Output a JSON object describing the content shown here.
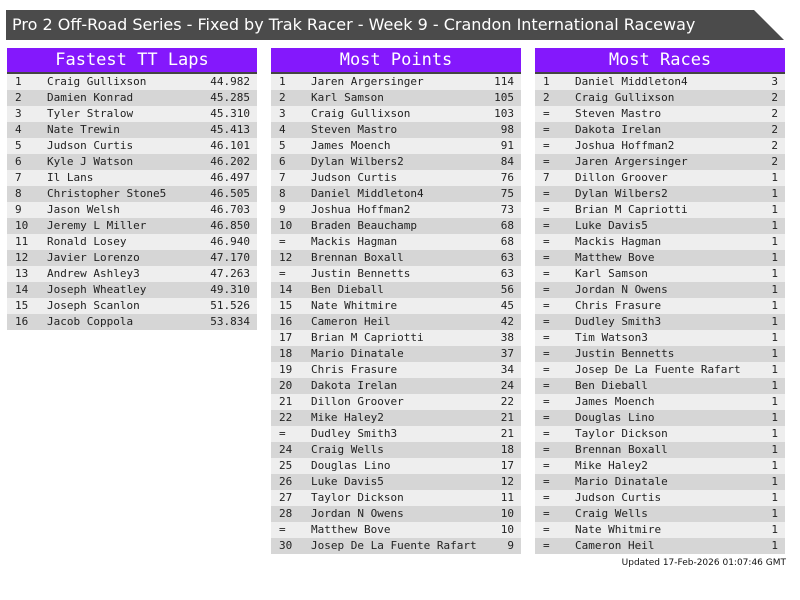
{
  "title": "Pro 2 Off-Road Series - Fixed by Trak Racer - Week 9 - Crandon International Raceway",
  "tables": [
    {
      "heading": "Fastest TT Laps",
      "rows": [
        [
          "1",
          "Craig Gullixson",
          "44.982"
        ],
        [
          "2",
          "Damien Konrad",
          "45.285"
        ],
        [
          "3",
          "Tyler Stralow",
          "45.310"
        ],
        [
          "4",
          "Nate Trewin",
          "45.413"
        ],
        [
          "5",
          "Judson Curtis",
          "46.101"
        ],
        [
          "6",
          "Kyle J Watson",
          "46.202"
        ],
        [
          "7",
          "Il Lans",
          "46.497"
        ],
        [
          "8",
          "Christopher Stone5",
          "46.505"
        ],
        [
          "9",
          "Jason Welsh",
          "46.703"
        ],
        [
          "10",
          "Jeremy L Miller",
          "46.850"
        ],
        [
          "11",
          "Ronald Losey",
          "46.940"
        ],
        [
          "12",
          "Javier Lorenzo",
          "47.170"
        ],
        [
          "13",
          "Andrew Ashley3",
          "47.263"
        ],
        [
          "14",
          "Joseph Wheatley",
          "49.310"
        ],
        [
          "15",
          "Joseph Scanlon",
          "51.526"
        ],
        [
          "16",
          "Jacob Coppola",
          "53.834"
        ]
      ]
    },
    {
      "heading": "Most Points",
      "rows": [
        [
          "1",
          "Jaren Argersinger",
          "114"
        ],
        [
          "2",
          "Karl Samson",
          "105"
        ],
        [
          "3",
          "Craig Gullixson",
          "103"
        ],
        [
          "4",
          "Steven Mastro",
          "98"
        ],
        [
          "5",
          "James Moench",
          "91"
        ],
        [
          "6",
          "Dylan Wilbers2",
          "84"
        ],
        [
          "7",
          "Judson Curtis",
          "76"
        ],
        [
          "8",
          "Daniel Middleton4",
          "75"
        ],
        [
          "9",
          "Joshua Hoffman2",
          "73"
        ],
        [
          "10",
          "Braden Beauchamp",
          "68"
        ],
        [
          "=",
          "Mackis Hagman",
          "68"
        ],
        [
          "12",
          "Brennan Boxall",
          "63"
        ],
        [
          "=",
          "Justin Bennetts",
          "63"
        ],
        [
          "14",
          "Ben Dieball",
          "56"
        ],
        [
          "15",
          "Nate Whitmire",
          "45"
        ],
        [
          "16",
          "Cameron Heil",
          "42"
        ],
        [
          "17",
          "Brian M Capriotti",
          "38"
        ],
        [
          "18",
          "Mario Dinatale",
          "37"
        ],
        [
          "19",
          "Chris Frasure",
          "34"
        ],
        [
          "20",
          "Dakota Irelan",
          "24"
        ],
        [
          "21",
          "Dillon Groover",
          "22"
        ],
        [
          "22",
          "Mike Haley2",
          "21"
        ],
        [
          "=",
          "Dudley Smith3",
          "21"
        ],
        [
          "24",
          "Craig Wells",
          "18"
        ],
        [
          "25",
          "Douglas Lino",
          "17"
        ],
        [
          "26",
          "Luke Davis5",
          "12"
        ],
        [
          "27",
          "Taylor Dickson",
          "11"
        ],
        [
          "28",
          "Jordan N Owens",
          "10"
        ],
        [
          "=",
          "Matthew Bove",
          "10"
        ],
        [
          "30",
          "Josep De La Fuente Rafart",
          "9"
        ]
      ]
    },
    {
      "heading": "Most Races",
      "rows": [
        [
          "1",
          "Daniel Middleton4",
          "3"
        ],
        [
          "2",
          "Craig Gullixson",
          "2"
        ],
        [
          "=",
          "Steven Mastro",
          "2"
        ],
        [
          "=",
          "Dakota Irelan",
          "2"
        ],
        [
          "=",
          "Joshua Hoffman2",
          "2"
        ],
        [
          "=",
          "Jaren Argersinger",
          "2"
        ],
        [
          "7",
          "Dillon Groover",
          "1"
        ],
        [
          "=",
          "Dylan Wilbers2",
          "1"
        ],
        [
          "=",
          "Brian M Capriotti",
          "1"
        ],
        [
          "=",
          "Luke Davis5",
          "1"
        ],
        [
          "=",
          "Mackis Hagman",
          "1"
        ],
        [
          "=",
          "Matthew Bove",
          "1"
        ],
        [
          "=",
          "Karl Samson",
          "1"
        ],
        [
          "=",
          "Jordan N Owens",
          "1"
        ],
        [
          "=",
          "Chris Frasure",
          "1"
        ],
        [
          "=",
          "Dudley Smith3",
          "1"
        ],
        [
          "=",
          "Tim Watson3",
          "1"
        ],
        [
          "=",
          "Justin Bennetts",
          "1"
        ],
        [
          "=",
          "Josep De La Fuente Rafart",
          "1"
        ],
        [
          "=",
          "Ben Dieball",
          "1"
        ],
        [
          "=",
          "James Moench",
          "1"
        ],
        [
          "=",
          "Douglas Lino",
          "1"
        ],
        [
          "=",
          "Taylor Dickson",
          "1"
        ],
        [
          "=",
          "Brennan Boxall",
          "1"
        ],
        [
          "=",
          "Mike Haley2",
          "1"
        ],
        [
          "=",
          "Mario Dinatale",
          "1"
        ],
        [
          "=",
          "Judson Curtis",
          "1"
        ],
        [
          "=",
          "Craig Wells",
          "1"
        ],
        [
          "=",
          "Nate Whitmire",
          "1"
        ],
        [
          "=",
          "Cameron Heil",
          "1"
        ]
      ]
    }
  ],
  "updated": "Updated 17-Feb-2026 01:07:46 GMT",
  "colors": {
    "header": "#8418fc",
    "title_bar": "#4b4b4b",
    "row_light": "#eeeeee",
    "row_dark": "#d6d6d6"
  }
}
